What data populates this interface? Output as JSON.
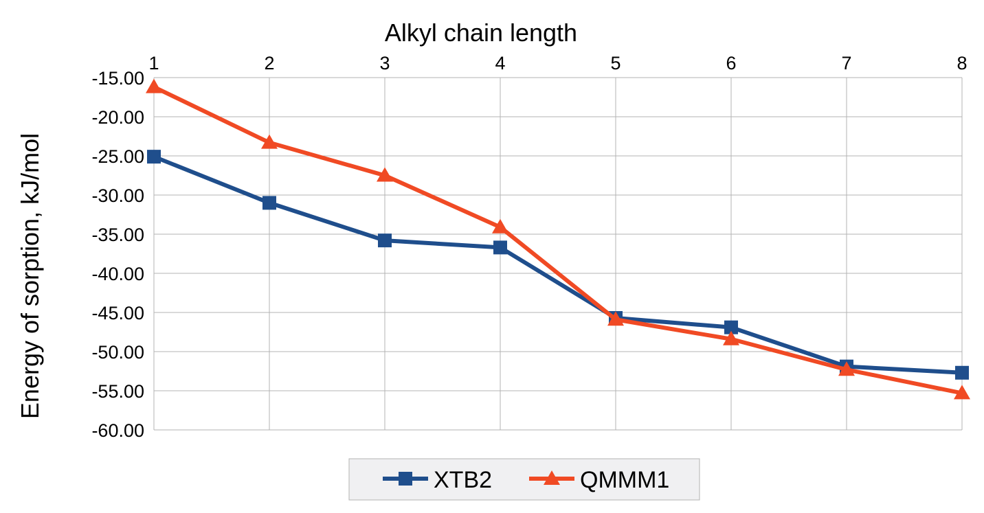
{
  "chart_data": {
    "type": "line",
    "title": "",
    "xlabel": "Alkyl chain length",
    "ylabel": "Energy of sorption, kJ/mol",
    "x": [
      1,
      2,
      3,
      4,
      5,
      6,
      7,
      8
    ],
    "x_tick_labels": [
      "1",
      "2",
      "3",
      "4",
      "5",
      "6",
      "7",
      "8"
    ],
    "x_axis_position": "top",
    "ylim": [
      -60,
      -15
    ],
    "y_ticks": [
      -15,
      -20,
      -25,
      -30,
      -35,
      -40,
      -45,
      -50,
      -55,
      -60
    ],
    "y_tick_labels": [
      "-15.00",
      "-20.00",
      "-25.00",
      "-30.00",
      "-35.00",
      "-40.00",
      "-45.00",
      "-50.00",
      "-55.00",
      "-60.00"
    ],
    "grid": true,
    "legend_position": "bottom",
    "series": [
      {
        "name": "XTB2",
        "color": "#1f4e8c",
        "marker": "square",
        "values": [
          -25.1,
          -31.0,
          -35.8,
          -36.7,
          -45.7,
          -46.9,
          -51.9,
          -52.7
        ]
      },
      {
        "name": "QMMM1",
        "color": "#f04a24",
        "marker": "triangle",
        "values": [
          -16.2,
          -23.3,
          -27.5,
          -34.1,
          -45.9,
          -48.4,
          -52.3,
          -55.3
        ]
      }
    ]
  }
}
